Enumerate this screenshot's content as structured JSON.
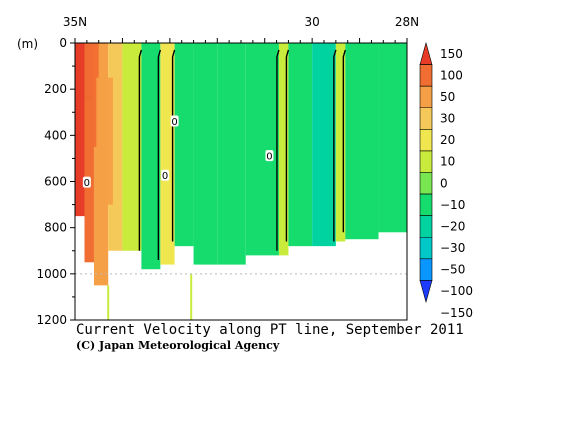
{
  "chart_data": {
    "type": "heatmap",
    "title": "Current Velocity along PT line, September 2011",
    "credit": "(C) Japan Meteorological Agency",
    "ylabel": "(m)",
    "x_ticks": [
      {
        "value": 35,
        "label": "35N"
      },
      {
        "value": 30,
        "label": "30"
      },
      {
        "value": 28,
        "label": "28N"
      }
    ],
    "xlim": [
      35,
      28
    ],
    "ylim": [
      0,
      1200
    ],
    "y_ticks": [
      0,
      200,
      400,
      600,
      800,
      1000,
      1200
    ],
    "colorbar": {
      "levels": [
        -150,
        -100,
        -50,
        -30,
        -20,
        -10,
        0,
        10,
        20,
        30,
        50,
        100,
        150
      ],
      "labels": [
        "150",
        "100",
        "50",
        "30",
        "20",
        "10",
        "0",
        "−10",
        "−20",
        "−30",
        "−50",
        "−100",
        "−150"
      ],
      "colors": [
        "#1e3cff",
        "#0a96ff",
        "#00c8c8",
        "#00d2a0",
        "#16dc6e",
        "#78e650",
        "#c8eb3c",
        "#f0e650",
        "#f5c85a",
        "#f5a046",
        "#f06e32",
        "#e63c28"
      ]
    },
    "contour_labels": [
      {
        "label": "0",
        "lat": 34.75,
        "depth": 605
      },
      {
        "label": "0",
        "lat": 32.9,
        "depth": 340
      },
      {
        "label": "0",
        "lat": 33.1,
        "depth": 575
      },
      {
        "label": "0",
        "lat": 30.9,
        "depth": 490
      }
    ],
    "bands": [
      {
        "lat_from": 35.0,
        "lat_to": 34.8,
        "value": 120,
        "bottom": 750
      },
      {
        "lat_from": 34.8,
        "lat_to": 34.6,
        "value": 60,
        "bottom": 950
      },
      {
        "lat_from": 34.6,
        "lat_to": 34.3,
        "value": 35,
        "bottom": 1050
      },
      {
        "lat_from": 34.3,
        "lat_to": 34.0,
        "value": 20,
        "bottom": 900
      },
      {
        "lat_from": 34.0,
        "lat_to": 33.6,
        "value": 5,
        "bottom": 900
      },
      {
        "lat_from": 33.6,
        "lat_to": 33.2,
        "value": -15,
        "bottom": 980
      },
      {
        "lat_from": 33.2,
        "lat_to": 32.9,
        "value": 15,
        "bottom": 960
      },
      {
        "lat_from": 32.9,
        "lat_to": 32.5,
        "value": -15,
        "bottom": 880
      },
      {
        "lat_from": 32.5,
        "lat_to": 32.0,
        "value": -18,
        "bottom": 960
      },
      {
        "lat_from": 32.0,
        "lat_to": 31.4,
        "value": -20,
        "bottom": 960
      },
      {
        "lat_from": 31.4,
        "lat_to": 30.7,
        "value": -18,
        "bottom": 920
      },
      {
        "lat_from": 30.7,
        "lat_to": 30.5,
        "value": 5,
        "bottom": 920
      },
      {
        "lat_from": 30.5,
        "lat_to": 30.0,
        "value": -18,
        "bottom": 880
      },
      {
        "lat_from": 30.0,
        "lat_to": 29.5,
        "value": -22,
        "bottom": 880
      },
      {
        "lat_from": 29.5,
        "lat_to": 29.3,
        "value": 5,
        "bottom": 860
      },
      {
        "lat_from": 29.3,
        "lat_to": 28.6,
        "value": -20,
        "bottom": 850
      },
      {
        "lat_from": 28.6,
        "lat_to": 28.0,
        "value": -15,
        "bottom": 820
      }
    ],
    "surface_patches": [
      {
        "lat_from": 34.95,
        "lat_to": 34.65,
        "depth_from": 0,
        "depth_to": 250,
        "value": 120
      },
      {
        "lat_from": 34.8,
        "lat_to": 34.5,
        "depth_from": 0,
        "depth_to": 450,
        "value": 60
      },
      {
        "lat_from": 34.55,
        "lat_to": 34.2,
        "depth_from": 150,
        "depth_to": 700,
        "value": 35
      }
    ],
    "spikes": [
      {
        "lat": 34.3,
        "depth_from": 1050,
        "depth_to": 1200,
        "value": 5
      },
      {
        "lat": 32.55,
        "depth_from": 1000,
        "depth_to": 1200,
        "value": 5
      }
    ]
  }
}
